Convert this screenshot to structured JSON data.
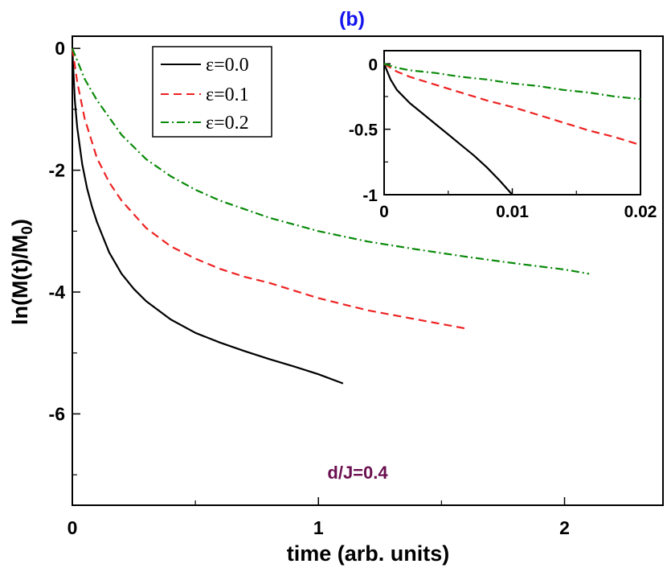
{
  "chart_data": [
    {
      "type": "line",
      "panel_label": "(b)",
      "annotation": "d/J=0.4",
      "xlabel": "time (arb. units)",
      "ylabel_main": "ln(M(t)/M",
      "ylabel_sub": "0",
      "ylabel_close": ")",
      "xlim": [
        0,
        2.4
      ],
      "ylim": [
        -7.5,
        0.2
      ],
      "xticks": [
        0,
        1,
        2
      ],
      "xtick_labels": [
        "0",
        "1",
        "2"
      ],
      "yticks": [
        0,
        -2,
        -4,
        -6
      ],
      "ytick_labels": [
        "0",
        "-2",
        "-4",
        "-6"
      ],
      "legend_position": "top-center",
      "series": [
        {
          "name": "ε=0.0",
          "color": "#000000",
          "dash": "solid",
          "x": [
            0,
            0.01,
            0.02,
            0.04,
            0.06,
            0.08,
            0.1,
            0.15,
            0.2,
            0.25,
            0.3,
            0.4,
            0.5,
            0.6,
            0.7,
            0.8,
            0.9,
            1.0,
            1.1
          ],
          "y": [
            0,
            -0.85,
            -1.3,
            -1.9,
            -2.3,
            -2.6,
            -2.85,
            -3.35,
            -3.7,
            -3.95,
            -4.15,
            -4.45,
            -4.67,
            -4.83,
            -4.97,
            -5.1,
            -5.22,
            -5.35,
            -5.5
          ]
        },
        {
          "name": "ε=0.1",
          "color": "#ee2222",
          "dash": "10,6",
          "x": [
            0,
            0.02,
            0.05,
            0.1,
            0.15,
            0.2,
            0.3,
            0.4,
            0.5,
            0.6,
            0.7,
            0.8,
            1.0,
            1.2,
            1.4,
            1.6
          ],
          "y": [
            0,
            -0.55,
            -1.15,
            -1.8,
            -2.2,
            -2.5,
            -2.95,
            -3.25,
            -3.45,
            -3.62,
            -3.75,
            -3.85,
            -4.1,
            -4.3,
            -4.45,
            -4.6
          ]
        },
        {
          "name": "ε=0.2",
          "color": "#0a8a0a",
          "dash": "10,4,2,4",
          "x": [
            0,
            0.05,
            0.1,
            0.2,
            0.3,
            0.4,
            0.5,
            0.6,
            0.8,
            1.0,
            1.2,
            1.4,
            1.6,
            1.8,
            2.0,
            2.1
          ],
          "y": [
            0,
            -0.5,
            -0.85,
            -1.42,
            -1.82,
            -2.1,
            -2.32,
            -2.5,
            -2.78,
            -3.0,
            -3.17,
            -3.3,
            -3.42,
            -3.53,
            -3.63,
            -3.7
          ]
        }
      ]
    },
    {
      "type": "line",
      "role": "inset",
      "xlim": [
        0,
        0.02
      ],
      "ylim": [
        -1,
        0.1
      ],
      "xticks": [
        0,
        0.01,
        0.02
      ],
      "xtick_labels": [
        "0",
        "0.01",
        "0.02"
      ],
      "yticks": [
        0,
        -0.5,
        -1
      ],
      "ytick_labels": [
        "0",
        "-0.5",
        "-1"
      ],
      "series": [
        {
          "name": "ε=0.0",
          "color": "#000000",
          "dash": "solid",
          "x": [
            0,
            0.0005,
            0.001,
            0.002,
            0.003,
            0.004,
            0.005,
            0.006,
            0.007,
            0.008,
            0.009,
            0.01
          ],
          "y": [
            0,
            -0.12,
            -0.2,
            -0.3,
            -0.38,
            -0.46,
            -0.54,
            -0.62,
            -0.7,
            -0.79,
            -0.89,
            -1.0
          ]
        },
        {
          "name": "ε=0.1",
          "color": "#ee2222",
          "dash": "10,6",
          "x": [
            0,
            0.001,
            0.002,
            0.004,
            0.006,
            0.008,
            0.01,
            0.012,
            0.014,
            0.016,
            0.018,
            0.02
          ],
          "y": [
            0,
            -0.06,
            -0.1,
            -0.16,
            -0.22,
            -0.28,
            -0.33,
            -0.39,
            -0.45,
            -0.51,
            -0.56,
            -0.62
          ]
        },
        {
          "name": "ε=0.2",
          "color": "#0a8a0a",
          "dash": "10,4,2,4",
          "x": [
            0,
            0.001,
            0.002,
            0.004,
            0.006,
            0.008,
            0.01,
            0.012,
            0.014,
            0.016,
            0.018,
            0.02
          ],
          "y": [
            0,
            -0.03,
            -0.05,
            -0.07,
            -0.1,
            -0.12,
            -0.15,
            -0.17,
            -0.2,
            -0.22,
            -0.25,
            -0.27
          ]
        }
      ]
    }
  ]
}
